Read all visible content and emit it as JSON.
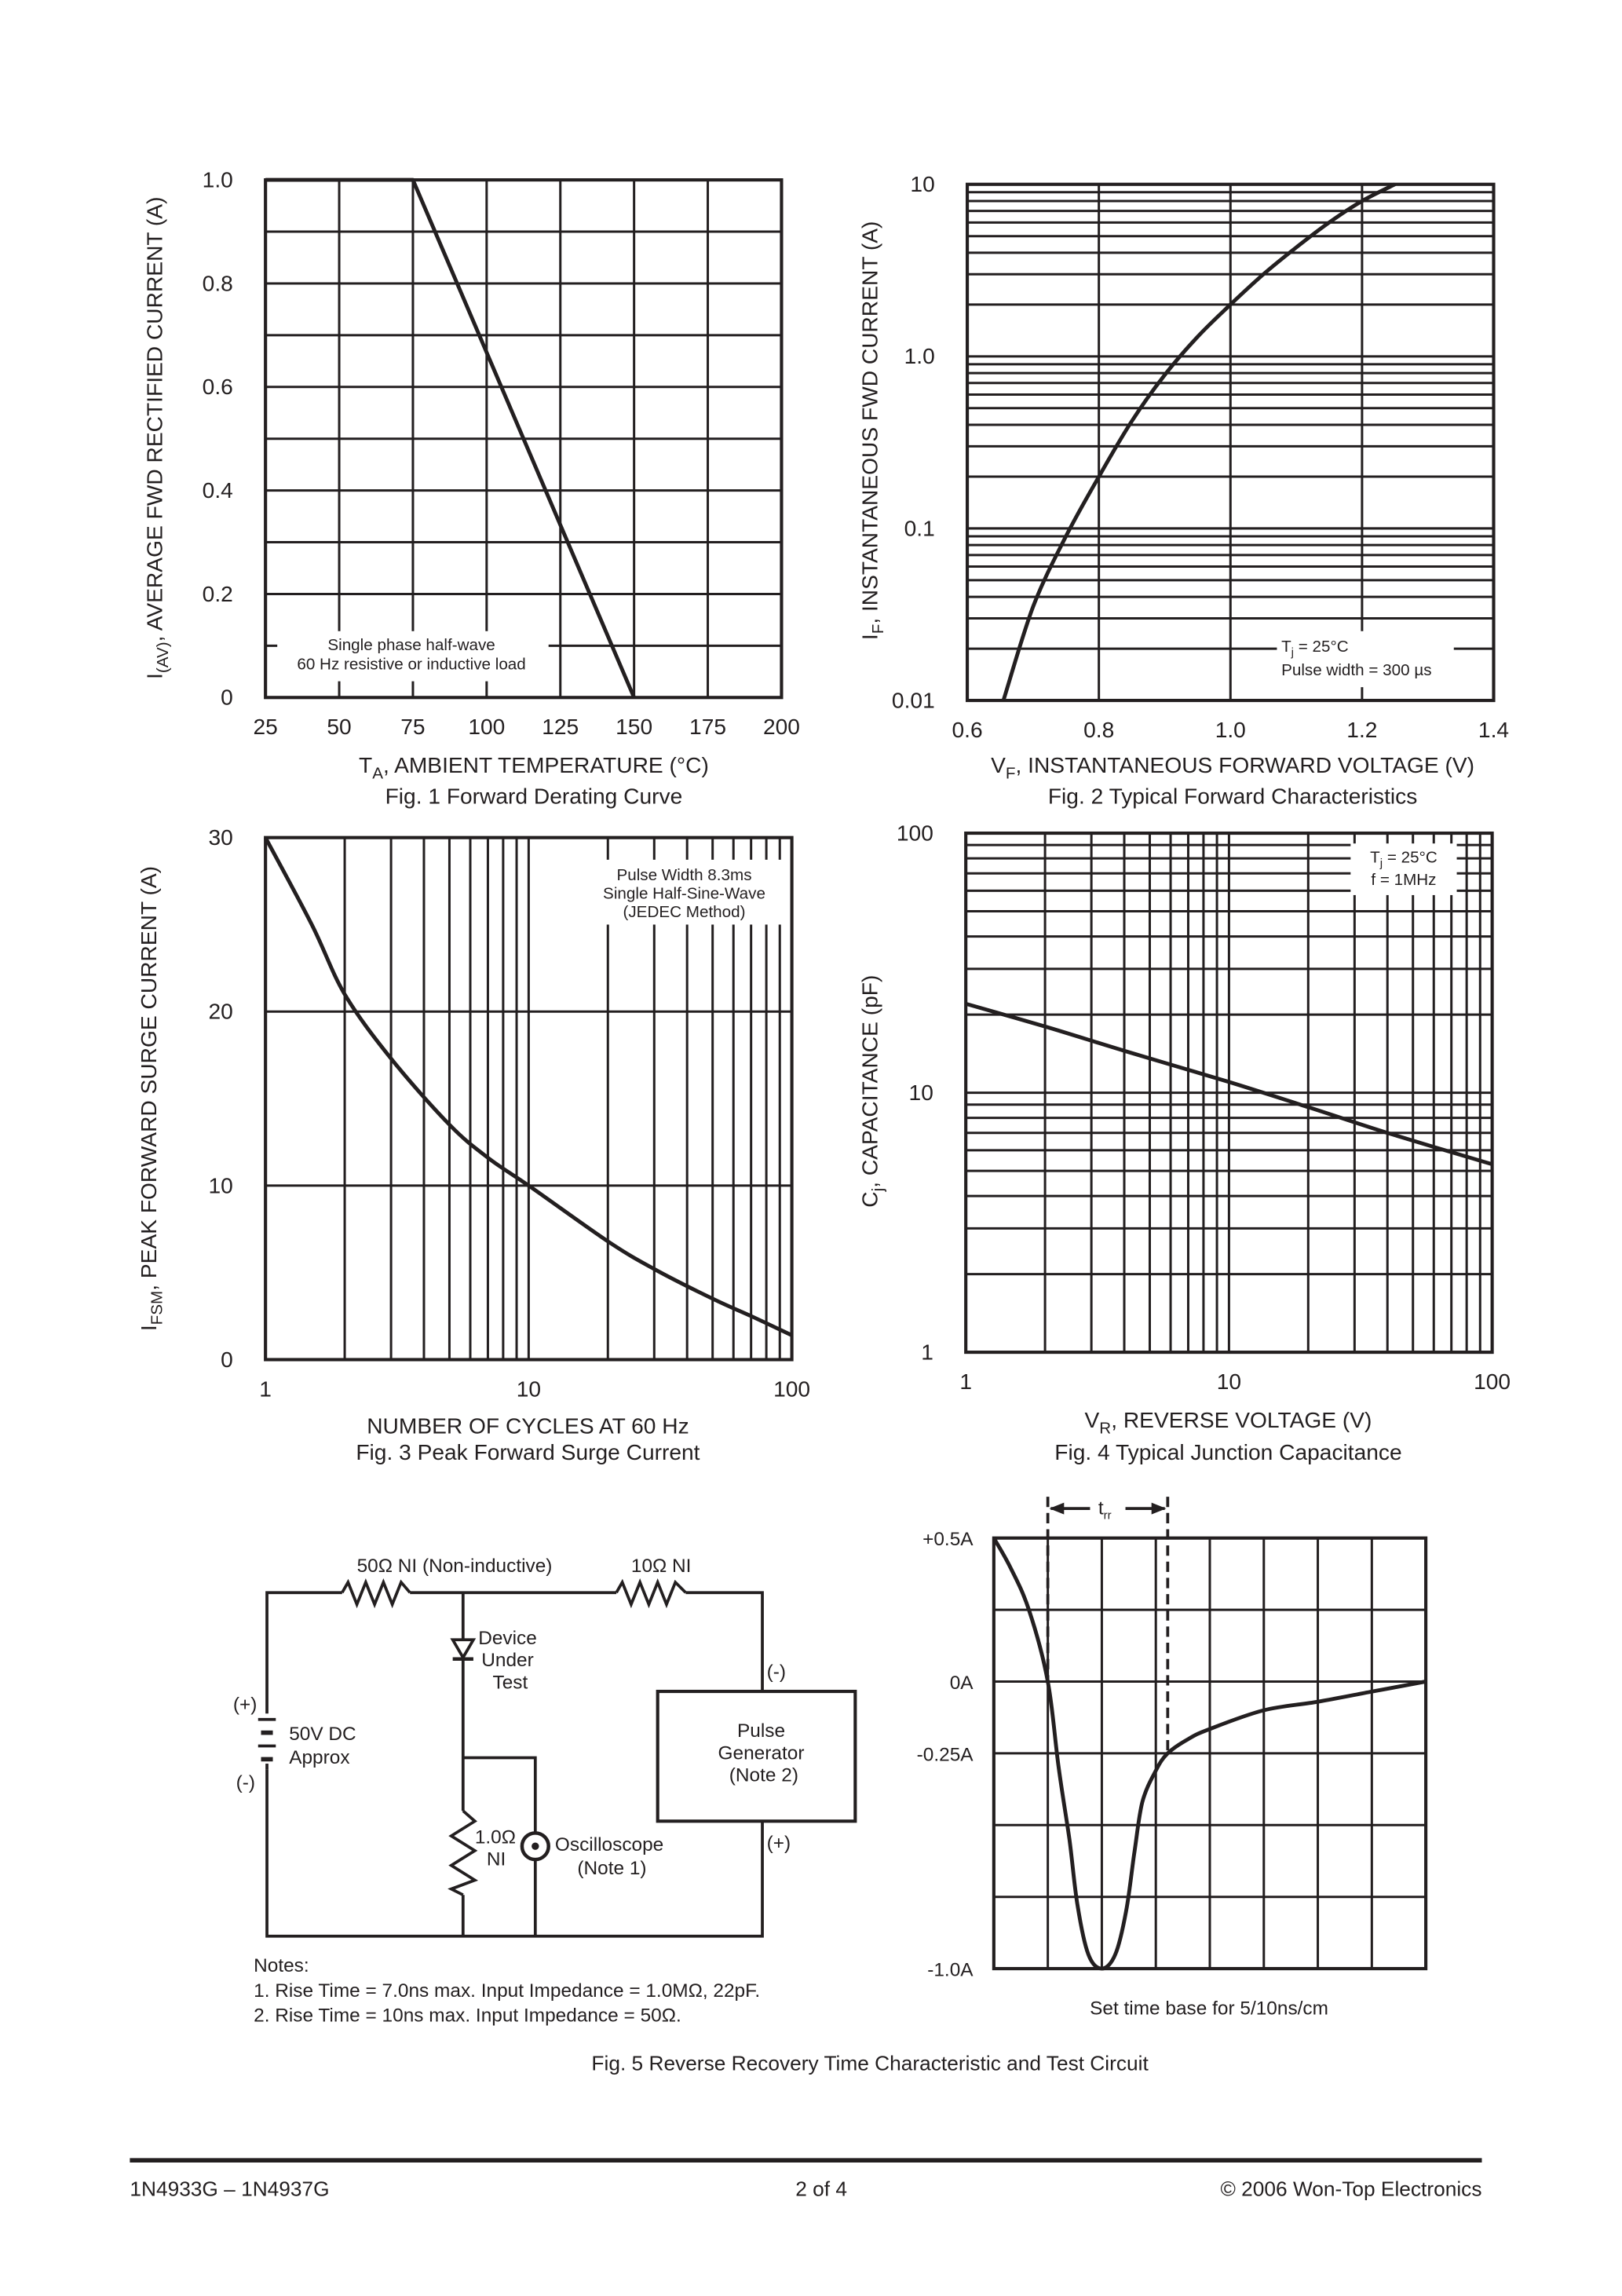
{
  "chart_data": [
    {
      "type": "line",
      "title": "Fig. 1  Forward Derating Curve",
      "xlabel": {
        "main": "T",
        "sub": "A",
        "rest": ", AMBIENT TEMPERATURE (°C)"
      },
      "ylabel": {
        "main": "I",
        "sub": "(AV)",
        "rest": ", AVERAGE FWD RECTIFIED CURRENT (A)"
      },
      "x_scale": "linear",
      "y_scale": "linear",
      "xlim": [
        25,
        200
      ],
      "ylim": [
        0,
        1.0
      ],
      "x_ticks": [
        {
          "v": 25,
          "label": "25"
        },
        {
          "v": 50,
          "label": "50"
        },
        {
          "v": 75,
          "label": "75"
        },
        {
          "v": 100,
          "label": "100"
        },
        {
          "v": 125,
          "label": "125"
        },
        {
          "v": 150,
          "label": "150"
        },
        {
          "v": 175,
          "label": "175"
        },
        {
          "v": 200,
          "label": "200"
        }
      ],
      "y_ticks": [
        {
          "v": 0,
          "label": "0"
        },
        {
          "v": 0.2,
          "label": "0.2"
        },
        {
          "v": 0.4,
          "label": "0.4"
        },
        {
          "v": 0.6,
          "label": "0.6"
        },
        {
          "v": 0.8,
          "label": "0.8"
        },
        {
          "v": 1.0,
          "label": "1.0"
        }
      ],
      "grid": {
        "on": true,
        "x_step": 25,
        "y_step": 0.1
      },
      "annotation": [
        {
          "main": "Single phase half-wave"
        },
        {
          "main": "60 Hz resistive or inductive load"
        }
      ],
      "series": [
        {
          "x": [
            25,
            75,
            150
          ],
          "y": [
            1.0,
            1.0,
            0
          ]
        }
      ]
    },
    {
      "type": "line",
      "title": "Fig. 2  Typical Forward Characteristics",
      "xlabel": {
        "main": "V",
        "sub": "F",
        "rest": ", INSTANTANEOUS FORWARD VOLTAGE (V)"
      },
      "ylabel": {
        "main": "I",
        "sub": "F",
        "rest": ", INSTANTANEOUS FWD CURRENT (A)"
      },
      "x_scale": "linear",
      "y_scale": "log",
      "xlim": [
        0.6,
        1.4
      ],
      "ylim": [
        0.01,
        10
      ],
      "x_ticks": [
        {
          "v": 0.6,
          "label": "0.6"
        },
        {
          "v": 0.8,
          "label": "0.8"
        },
        {
          "v": 1.0,
          "label": "1.0"
        },
        {
          "v": 1.2,
          "label": "1.2"
        },
        {
          "v": 1.4,
          "label": "1.4"
        }
      ],
      "y_ticks": [
        {
          "v": 0.01,
          "label": "0.01"
        },
        {
          "v": 0.1,
          "label": "0.1"
        },
        {
          "v": 1,
          "label": "1.0"
        },
        {
          "v": 10,
          "label": "10"
        }
      ],
      "grid": {
        "on": true,
        "x_step": 0.2,
        "y_step": "log-minor"
      },
      "annotation": [
        {
          "main": "T",
          "sub": "j",
          "rest": " = 25°C"
        },
        {
          "main": "Pulse width = 300 µs"
        }
      ],
      "series": [
        {
          "x": [
            0.655,
            0.7,
            0.75,
            0.8,
            0.85,
            0.9,
            0.95,
            1.0,
            1.05,
            1.1,
            1.15,
            1.2,
            1.25
          ],
          "y": [
            0.01,
            0.035,
            0.09,
            0.2,
            0.42,
            0.78,
            1.3,
            2.0,
            3.0,
            4.3,
            6.0,
            8.0,
            10
          ]
        }
      ]
    },
    {
      "type": "line",
      "title": "Fig. 3  Peak Forward Surge Current",
      "xlabel": {
        "main": "NUMBER OF CYCLES AT 60 Hz"
      },
      "ylabel": {
        "main": "I",
        "sub": "FSM",
        "rest": ", PEAK FORWARD SURGE CURRENT (A)"
      },
      "x_scale": "log",
      "y_scale": "linear",
      "xlim": [
        1,
        100
      ],
      "ylim": [
        0,
        30
      ],
      "x_ticks": [
        {
          "v": 1,
          "label": "1"
        },
        {
          "v": 10,
          "label": "10"
        },
        {
          "v": 100,
          "label": "100"
        }
      ],
      "y_ticks": [
        {
          "v": 0,
          "label": "0"
        },
        {
          "v": 10,
          "label": "10"
        },
        {
          "v": 20,
          "label": "20"
        },
        {
          "v": 30,
          "label": "30"
        }
      ],
      "grid": {
        "on": true,
        "x_step": "log-minor",
        "y_step": 10
      },
      "annotation": [
        {
          "main": "Pulse Width 8.3ms"
        },
        {
          "main": "Single Half-Sine-Wave"
        },
        {
          "main": "(JEDEC Method)"
        }
      ],
      "series": [
        {
          "x": [
            1,
            1.5,
            2,
            3,
            5,
            7,
            10,
            20,
            30,
            50,
            70,
            100
          ],
          "y": [
            30,
            25,
            21,
            17.3,
            13.5,
            11.6,
            10,
            6.8,
            5.2,
            3.5,
            2.5,
            1.4
          ]
        }
      ]
    },
    {
      "type": "line",
      "title": "Fig. 4  Typical Junction Capacitance",
      "xlabel": {
        "main": "V",
        "sub": "R",
        "rest": ", REVERSE VOLTAGE (V)"
      },
      "ylabel": {
        "main": "C",
        "sub": "j",
        "rest": ", CAPACITANCE (pF)"
      },
      "x_scale": "log",
      "y_scale": "log",
      "xlim": [
        1,
        100
      ],
      "ylim": [
        1,
        100
      ],
      "x_ticks": [
        {
          "v": 1,
          "label": "1"
        },
        {
          "v": 10,
          "label": "10"
        },
        {
          "v": 100,
          "label": "100"
        }
      ],
      "y_ticks": [
        {
          "v": 1,
          "label": "1"
        },
        {
          "v": 10,
          "label": "10"
        },
        {
          "v": 100,
          "label": "100"
        }
      ],
      "grid": {
        "on": true,
        "x_step": "log-minor",
        "y_step": "log-minor"
      },
      "annotation": [
        {
          "main": "T",
          "sub": "j",
          "rest": " = 25°C"
        },
        {
          "main": "f = 1MHz"
        }
      ],
      "series": [
        {
          "x": [
            1,
            2,
            4,
            10,
            20,
            40,
            100
          ],
          "y": [
            22,
            18,
            14.5,
            11,
            8.8,
            7.0,
            5.3
          ]
        }
      ]
    },
    {
      "type": "line",
      "title": "Fig. 5  Reverse Recovery Time Characteristic and Test Circuit",
      "xlabel": {
        "main": "Set time base for 5/10ns/cm"
      },
      "x_scale": "divisions",
      "xlim": [
        0,
        8
      ],
      "y_ticks": [
        {
          "v": 0.5,
          "label": "+0.5A"
        },
        {
          "v": 0,
          "label": "0A"
        },
        {
          "v": -0.25,
          "label": "-0.25A"
        },
        {
          "v": -1.0,
          "label": "-1.0A"
        }
      ],
      "grid": {
        "on": true,
        "x_divisions": 8,
        "y_divisions": 6
      },
      "trr_label": {
        "main": "t",
        "sub": "rr"
      },
      "trr_markers_x": [
        1.0,
        3.22
      ],
      "series": [
        {
          "x": [
            0,
            0.3,
            0.65,
            1.0,
            1.2,
            1.4,
            1.55,
            1.75,
            2.0,
            2.25,
            2.45,
            2.6,
            2.75,
            3.0,
            3.22,
            3.6,
            4.0,
            5.0,
            6.0,
            7.0,
            8.0
          ],
          "y": [
            0.5,
            0.4,
            0.25,
            0,
            -0.3,
            -0.55,
            -0.78,
            -0.95,
            -1.0,
            -0.95,
            -0.8,
            -0.6,
            -0.42,
            -0.31,
            -0.25,
            -0.2,
            -0.165,
            -0.1,
            -0.07,
            -0.035,
            0
          ]
        }
      ]
    }
  ],
  "circuit": {
    "r50_label": "50Ω NI (Non-inductive)",
    "r10_label": "10Ω NI",
    "dut_label": [
      "Device",
      "Under",
      "Test"
    ],
    "battery_plus": "(+)",
    "battery_minus": "(-)",
    "battery_label": [
      "50V DC",
      "Approx"
    ],
    "pulse_gen_label": [
      "Pulse",
      "Generator",
      "(Note 2)"
    ],
    "pulse_gen_minus": "(-)",
    "pulse_gen_plus": "(+)",
    "r1_label": [
      "1.0Ω",
      "NI"
    ],
    "scope_label": [
      "Oscilloscope",
      "(Note 1)"
    ],
    "notes_title": "Notes:",
    "notes": [
      "1. Rise Time = 7.0ns max. Input Impedance = 1.0MΩ, 22pF.",
      "2. Rise Time = 10ns max. Input Impedance = 50Ω."
    ]
  },
  "footer": {
    "part_numbers": "1N4933G – 1N4937G",
    "page": "2 of 4",
    "copyright": "© 2006 Won-Top Electronics"
  }
}
